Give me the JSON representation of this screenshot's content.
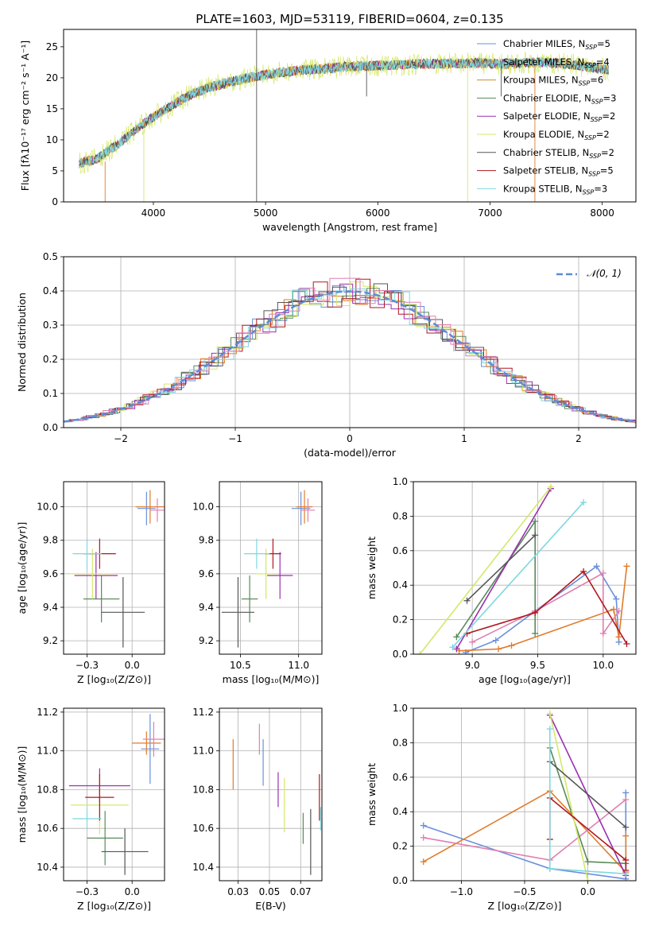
{
  "figure_title": "PLATE=1603, MJD=53119, FIBERID=0604, z=0.135",
  "colors": {
    "chabrier_miles": "#6a8fdc",
    "salpeter_miles": "#e07b2a",
    "kroupa_miles": "#c8902c",
    "chabrier_elodie": "#5a8a5a",
    "salpeter_elodie": "#9b2fb0",
    "kroupa_elodie": "#d4e86a",
    "chabrier_stelib": "#555555",
    "salpeter_stelib": "#b01820",
    "kroupa_stelib": "#7dd8e0",
    "pink": "#e07fb0",
    "normal": "#5b8bd8"
  },
  "chart_data": [
    {
      "id": "spectrum",
      "type": "line",
      "xlabel": "wavelength [Angstrom, rest frame]",
      "ylabel": "Flux [fλ10⁻¹⁷ erg cm⁻² s⁻¹ A⁻¹]",
      "xlim": [
        3200,
        8300
      ],
      "ylim": [
        0,
        27.8
      ],
      "xticks": [
        4000,
        5000,
        6000,
        7000,
        8000
      ],
      "yticks": [
        0,
        5,
        10,
        15,
        20,
        25
      ],
      "continuum": [
        [
          3340,
          6.2
        ],
        [
          3500,
          7.0
        ],
        [
          3700,
          9.5
        ],
        [
          3900,
          12.5
        ],
        [
          4100,
          14.8
        ],
        [
          4300,
          17.0
        ],
        [
          4500,
          18.5
        ],
        [
          4700,
          19.4
        ],
        [
          4900,
          20.2
        ],
        [
          5100,
          20.8
        ],
        [
          5300,
          21.2
        ],
        [
          5500,
          21.4
        ],
        [
          5700,
          21.8
        ],
        [
          5900,
          21.9
        ],
        [
          6100,
          22.0
        ],
        [
          6300,
          22.2
        ],
        [
          6500,
          22.3
        ],
        [
          6700,
          22.3
        ],
        [
          6900,
          22.4
        ],
        [
          7100,
          22.2
        ],
        [
          7300,
          22.4
        ],
        [
          7500,
          22.5
        ],
        [
          7700,
          22.2
        ],
        [
          7900,
          21.7
        ],
        [
          8060,
          21.3
        ]
      ],
      "legend": [
        {
          "label": "Chabrier MILES, N",
          "sub": "SSP",
          "suffix": "=5",
          "color": "#6a8fdc"
        },
        {
          "label": "Salpeter MILES, N",
          "sub": "SSP",
          "suffix": "=4",
          "color": "#e07b2a"
        },
        {
          "label": "Kroupa MILES, N",
          "sub": "SSP",
          "suffix": "=6",
          "color": "#c8902c"
        },
        {
          "label": "Chabrier ELODIE, N",
          "sub": "SSP",
          "suffix": "=3",
          "color": "#5a8a5a"
        },
        {
          "label": "Salpeter ELODIE, N",
          "sub": "SSP",
          "suffix": "=2",
          "color": "#9b2fb0"
        },
        {
          "label": "Kroupa ELODIE, N",
          "sub": "SSP",
          "suffix": "=2",
          "color": "#d4e86a"
        },
        {
          "label": "Chabrier STELIB, N",
          "sub": "SSP",
          "suffix": "=2",
          "color": "#555555"
        },
        {
          "label": "Salpeter STELIB, N",
          "sub": "SSP",
          "suffix": "=5",
          "color": "#b01820"
        },
        {
          "label": "Kroupa STELIB, N",
          "sub": "SSP",
          "suffix": "=3",
          "color": "#7dd8e0"
        }
      ]
    },
    {
      "id": "residuals",
      "type": "line",
      "xlabel": "(data-model)/error",
      "ylabel": "Normed distribution",
      "xlim": [
        -2.5,
        2.5
      ],
      "ylim": [
        0,
        0.5
      ],
      "xticks": [
        -2,
        -1,
        0,
        1,
        2
      ],
      "yticks": [
        0.0,
        0.1,
        0.2,
        0.3,
        0.4,
        0.5
      ],
      "legend_label": "𝒩(0, 1)",
      "hist_colors": [
        "#6a8fdc",
        "#e07b2a",
        "#5a8a5a",
        "#9b2fb0",
        "#d4e86a",
        "#555555",
        "#b01820",
        "#7dd8e0",
        "#e07fb0"
      ]
    },
    {
      "id": "age_vs_Z",
      "type": "scatter",
      "xlabel": "Z [log₁₀(Z/Z⊙)]",
      "ylabel": "age  [log₁₀(age/yr)]",
      "xlim": [
        -0.38,
        0.18
      ],
      "ylim": [
        9.12,
        10.15
      ],
      "xticks": [
        -0.25,
        0.0
      ],
      "yticks": [
        9.2,
        9.4,
        9.6,
        9.8,
        10.0
      ],
      "points": [
        {
          "x": 0.08,
          "y": 9.99,
          "xerr": 0.05,
          "yerr": 0.1,
          "color": "#6a8fdc"
        },
        {
          "x": 0.1,
          "y": 10.0,
          "xerr": 0.08,
          "yerr": 0.1,
          "color": "#e07b2a"
        },
        {
          "x": 0.14,
          "y": 9.98,
          "xerr": 0.04,
          "yerr": 0.07,
          "color": "#e07fb0"
        },
        {
          "x": -0.17,
          "y": 9.45,
          "xerr": 0.1,
          "yerr": 0.14,
          "color": "#5a8a5a"
        },
        {
          "x": -0.2,
          "y": 9.59,
          "xerr": 0.12,
          "yerr": 0.14,
          "color": "#9b2fb0"
        },
        {
          "x": -0.22,
          "y": 9.6,
          "xerr": 0.12,
          "yerr": 0.15,
          "color": "#d4e86a"
        },
        {
          "x": -0.05,
          "y": 9.37,
          "xerr": 0.12,
          "yerr": 0.21,
          "color": "#555555"
        },
        {
          "x": -0.18,
          "y": 9.72,
          "xerr": 0.09,
          "yerr": 0.09,
          "color": "#b01820"
        },
        {
          "x": -0.25,
          "y": 9.72,
          "xerr": 0.08,
          "yerr": 0.09,
          "color": "#7dd8e0"
        }
      ]
    },
    {
      "id": "age_vs_mass",
      "type": "scatter",
      "xlabel": "mass [log₁₀(M/M⊙)]",
      "ylabel": "",
      "xlim": [
        10.32,
        11.2
      ],
      "ylim": [
        9.12,
        10.15
      ],
      "xticks": [
        10.5,
        11.0
      ],
      "yticks": [
        9.2,
        9.4,
        9.6,
        9.8,
        10.0
      ],
      "points": [
        {
          "x": 11.02,
          "y": 9.99,
          "xerr": 0.08,
          "yerr": 0.1,
          "color": "#6a8fdc"
        },
        {
          "x": 11.05,
          "y": 10.0,
          "xerr": 0.07,
          "yerr": 0.1,
          "color": "#e07b2a"
        },
        {
          "x": 11.08,
          "y": 9.98,
          "xerr": 0.06,
          "yerr": 0.07,
          "color": "#e07fb0"
        },
        {
          "x": 10.58,
          "y": 9.45,
          "xerr": 0.07,
          "yerr": 0.14,
          "color": "#5a8a5a"
        },
        {
          "x": 10.84,
          "y": 9.59,
          "xerr": 0.11,
          "yerr": 0.14,
          "color": "#9b2fb0"
        },
        {
          "x": 10.72,
          "y": 9.6,
          "xerr": 0.09,
          "yerr": 0.15,
          "color": "#d4e86a"
        },
        {
          "x": 10.48,
          "y": 9.37,
          "xerr": 0.14,
          "yerr": 0.21,
          "color": "#555555"
        },
        {
          "x": 10.78,
          "y": 9.72,
          "xerr": 0.07,
          "yerr": 0.09,
          "color": "#b01820"
        },
        {
          "x": 10.64,
          "y": 9.72,
          "xerr": 0.11,
          "yerr": 0.09,
          "color": "#7dd8e0"
        }
      ]
    },
    {
      "id": "massweight_vs_age",
      "type": "line",
      "xlabel": "age  [log₁₀(age/yr)]",
      "ylabel": "mass weight",
      "xlim": [
        8.55,
        10.25
      ],
      "ylim": [
        0,
        1.0
      ],
      "xticks": [
        9.0,
        9.5,
        10.0
      ],
      "yticks": [
        0.0,
        0.2,
        0.4,
        0.6,
        0.8,
        1.0
      ],
      "series": [
        {
          "color": "#6a8fdc",
          "points": [
            [
              8.95,
              0.01
            ],
            [
              9.18,
              0.08
            ],
            [
              9.48,
              0.25
            ],
            [
              9.95,
              0.51
            ],
            [
              10.1,
              0.32
            ],
            [
              10.12,
              0.07
            ]
          ]
        },
        {
          "color": "#e07b2a",
          "points": [
            [
              8.9,
              0.02
            ],
            [
              9.2,
              0.03
            ],
            [
              9.3,
              0.05
            ],
            [
              10.08,
              0.26
            ],
            [
              10.12,
              0.1
            ],
            [
              10.18,
              0.51
            ]
          ]
        },
        {
          "color": "#e07fb0",
          "points": [
            [
              9.0,
              0.07
            ],
            [
              9.48,
              0.25
            ],
            [
              10.0,
              0.47
            ],
            [
              10.0,
              0.12
            ],
            [
              10.12,
              0.25
            ]
          ]
        },
        {
          "color": "#5a8a5a",
          "points": [
            [
              8.88,
              0.1
            ],
            [
              9.48,
              0.77
            ],
            [
              9.48,
              0.12
            ]
          ]
        },
        {
          "color": "#9b2fb0",
          "points": [
            [
              8.88,
              0.03
            ],
            [
              9.6,
              0.96
            ]
          ]
        },
        {
          "color": "#d4e86a",
          "points": [
            [
              8.6,
              0.0
            ],
            [
              9.6,
              0.97
            ]
          ]
        },
        {
          "color": "#555555",
          "points": [
            [
              8.96,
              0.31
            ],
            [
              9.48,
              0.69
            ]
          ]
        },
        {
          "color": "#b01820",
          "points": [
            [
              8.96,
              0.12
            ],
            [
              9.48,
              0.24
            ],
            [
              9.85,
              0.48
            ],
            [
              10.18,
              0.06
            ]
          ]
        },
        {
          "color": "#7dd8e0",
          "points": [
            [
              8.85,
              0.04
            ],
            [
              9.85,
              0.88
            ]
          ]
        }
      ]
    },
    {
      "id": "mass_vs_Z",
      "type": "scatter",
      "xlabel": "Z [log₁₀(Z/Z⊙)]",
      "ylabel": "mass [log₁₀(M/M⊙)]",
      "xlim": [
        -0.38,
        0.18
      ],
      "ylim": [
        10.33,
        11.22
      ],
      "xticks": [
        -0.25,
        0.0
      ],
      "yticks": [
        10.4,
        10.6,
        10.8,
        11.0,
        11.2
      ],
      "points": [
        {
          "x": 0.1,
          "y": 11.01,
          "xerr": 0.05,
          "yerr": 0.18,
          "color": "#6a8fdc"
        },
        {
          "x": 0.08,
          "y": 11.04,
          "xerr": 0.08,
          "yerr": 0.06,
          "color": "#e07b2a"
        },
        {
          "x": 0.12,
          "y": 11.06,
          "xerr": 0.06,
          "yerr": 0.09,
          "color": "#e07fb0"
        },
        {
          "x": -0.15,
          "y": 10.55,
          "xerr": 0.1,
          "yerr": 0.14,
          "color": "#5a8a5a"
        },
        {
          "x": -0.18,
          "y": 10.82,
          "xerr": 0.17,
          "yerr": 0.09,
          "color": "#9b2fb0"
        },
        {
          "x": -0.18,
          "y": 10.72,
          "xerr": 0.16,
          "yerr": 0.15,
          "color": "#d4e86a"
        },
        {
          "x": -0.04,
          "y": 10.48,
          "xerr": 0.13,
          "yerr": 0.12,
          "color": "#555555"
        },
        {
          "x": -0.18,
          "y": 10.76,
          "xerr": 0.08,
          "yerr": 0.12,
          "color": "#b01820"
        },
        {
          "x": -0.25,
          "y": 10.65,
          "xerr": 0.08,
          "yerr": 0.05,
          "color": "#7dd8e0"
        }
      ]
    },
    {
      "id": "mass_vs_ebv",
      "type": "scatter",
      "xlabel": "E(B-V)",
      "ylabel": "",
      "xlim": [
        0.01,
        0.092
      ],
      "ylim": [
        10.33,
        11.22
      ],
      "xticks": [
        0.025,
        0.05,
        0.075
      ],
      "yticks": [
        10.4,
        10.6,
        10.8,
        11.0,
        11.2
      ],
      "points": [
        {
          "x": 0.021,
          "y": 10.93,
          "yerr": 0.13,
          "color": "#e07b2a"
        },
        {
          "x": 0.042,
          "y": 11.06,
          "yerr": 0.08,
          "color": "#e07fb0"
        },
        {
          "x": 0.045,
          "y": 10.94,
          "yerr": 0.12,
          "color": "#6a8fdc"
        },
        {
          "x": 0.057,
          "y": 10.8,
          "yerr": 0.09,
          "color": "#9b2fb0"
        },
        {
          "x": 0.062,
          "y": 10.72,
          "yerr": 0.14,
          "color": "#d4e86a"
        },
        {
          "x": 0.077,
          "y": 10.6,
          "yerr": 0.08,
          "color": "#5a8a5a"
        },
        {
          "x": 0.083,
          "y": 10.53,
          "yerr": 0.17,
          "color": "#555555"
        },
        {
          "x": 0.09,
          "y": 10.76,
          "yerr": 0.12,
          "color": "#b01820"
        },
        {
          "x": 0.091,
          "y": 10.65,
          "yerr": 0.06,
          "color": "#7dd8e0"
        }
      ]
    },
    {
      "id": "massweight_vs_Z",
      "type": "line",
      "xlabel": "Z [log₁₀(Z/Z⊙)]",
      "ylabel": "mass weight",
      "xlim": [
        -1.38,
        0.38
      ],
      "ylim": [
        0,
        1.0
      ],
      "xticks": [
        -1.0,
        -0.5,
        0.0
      ],
      "yticks": [
        0.0,
        0.2,
        0.4,
        0.6,
        0.8,
        1.0
      ],
      "series": [
        {
          "color": "#6a8fdc",
          "points": [
            [
              -1.3,
              0.32
            ],
            [
              -0.3,
              0.07
            ],
            [
              0.3,
              0.01
            ],
            [
              0.3,
              0.51
            ]
          ]
        },
        {
          "color": "#e07b2a",
          "points": [
            [
              -1.3,
              0.11
            ],
            [
              -0.3,
              0.52
            ],
            [
              0.3,
              0.05
            ],
            [
              0.3,
              0.26
            ]
          ]
        },
        {
          "color": "#e07fb0",
          "points": [
            [
              -1.3,
              0.25
            ],
            [
              -0.3,
              0.12
            ],
            [
              0.3,
              0.47
            ]
          ]
        },
        {
          "color": "#5a8a5a",
          "points": [
            [
              -0.3,
              0.77
            ],
            [
              0.0,
              0.11
            ],
            [
              0.3,
              0.1
            ]
          ]
        },
        {
          "color": "#9b2fb0",
          "points": [
            [
              -0.3,
              0.96
            ],
            [
              0.3,
              0.03
            ]
          ]
        },
        {
          "color": "#d4e86a",
          "points": [
            [
              -0.3,
              0.97
            ],
            [
              0.0,
              0.0
            ]
          ]
        },
        {
          "color": "#555555",
          "points": [
            [
              -0.3,
              0.69
            ],
            [
              0.3,
              0.31
            ]
          ]
        },
        {
          "color": "#b01820",
          "points": [
            [
              -0.3,
              0.24
            ],
            [
              -0.3,
              0.48
            ],
            [
              0.3,
              0.12
            ],
            [
              0.3,
              0.06
            ]
          ]
        },
        {
          "color": "#7dd8e0",
          "points": [
            [
              -0.3,
              0.88
            ],
            [
              -0.3,
              0.07
            ],
            [
              0.3,
              0.04
            ]
          ]
        }
      ]
    }
  ]
}
